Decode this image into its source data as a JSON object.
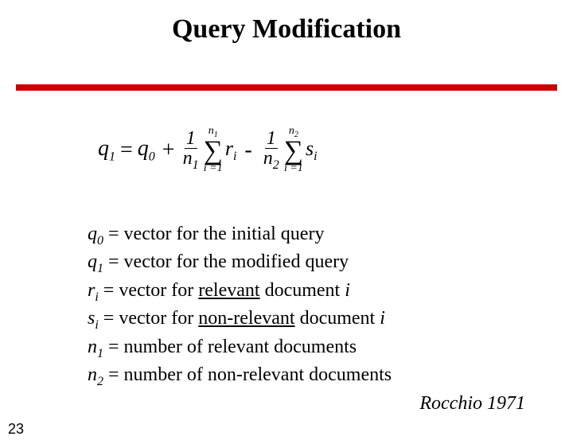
{
  "title": "Query Modification",
  "colors": {
    "rule": "#cc0000",
    "text": "#000000",
    "background": "#ffffff"
  },
  "equation": {
    "lhs_var": "q",
    "lhs_sub": "1",
    "eq": "=",
    "q0_var": "q",
    "q0_sub": "0",
    "plus": "+",
    "frac1_num": "1",
    "frac1_den_var": "n",
    "frac1_den_sub": "1",
    "sum1_upper_var": "n",
    "sum1_upper_sub": "1",
    "sum1_lower": "i =1",
    "term1_var": "r",
    "term1_sub": "i",
    "minus": "-",
    "frac2_num": "1",
    "frac2_den_var": "n",
    "frac2_den_sub": "2",
    "sum2_upper_var": "n",
    "sum2_upper_sub": "2",
    "sum2_lower": "i =1",
    "term2_var": "s",
    "term2_sub": "i"
  },
  "definitions": [
    {
      "sym": "q",
      "sub": "0",
      "text": " = vector for the initial query"
    },
    {
      "sym": "q",
      "sub": "1",
      "text": " = vector for the modified query"
    },
    {
      "sym": "r",
      "sub": "i",
      "pad": true,
      "prefix": " = vector for ",
      "ul": "relevant",
      "suffix": " document ",
      "trail_sym": "i"
    },
    {
      "sym": "s",
      "sub": "i",
      "pad": true,
      "prefix": " = vector for ",
      "ul": "non-relevant",
      "suffix": " document ",
      "trail_sym": "i"
    },
    {
      "sym": "n",
      "sub": "1",
      "text": " = number of relevant documents"
    },
    {
      "sym": "n",
      "sub": "2",
      "text": "  = number of non-relevant documents"
    }
  ],
  "citation": "Rocchio 1971",
  "page_number": "23"
}
